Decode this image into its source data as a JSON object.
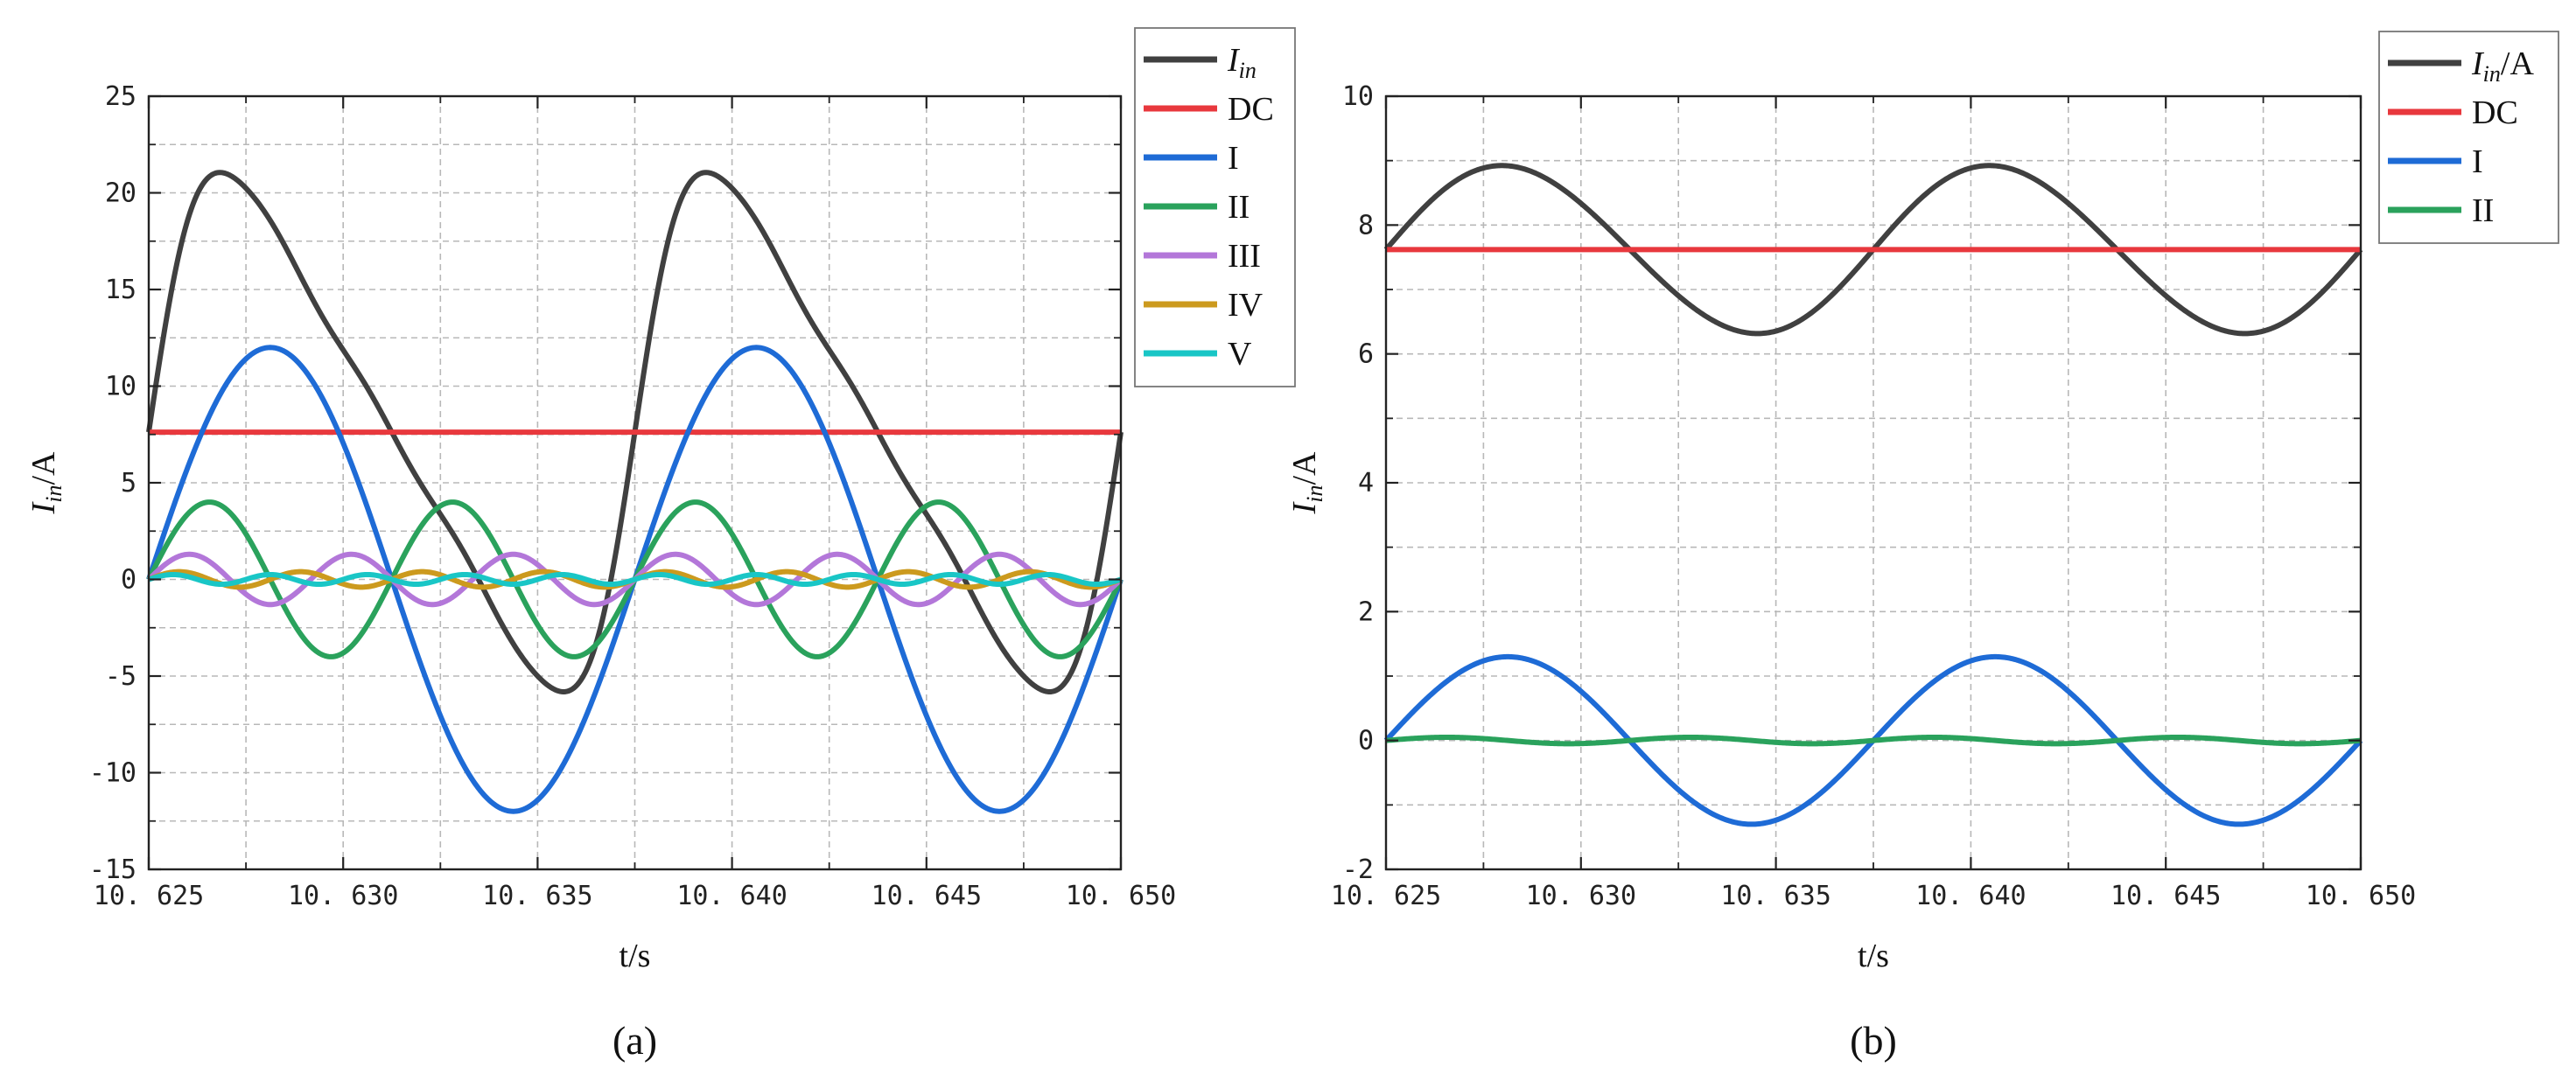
{
  "chart_data": [
    {
      "type": "line",
      "panel_label": "(a)",
      "xlabel": "t/s",
      "ylabel": {
        "base": "I",
        "sub": "in",
        "unit": "/A"
      },
      "xlim": [
        10.625,
        10.65
      ],
      "ylim": [
        -15,
        25
      ],
      "xticks": [
        10.625,
        10.63,
        10.635,
        10.64,
        10.645,
        10.65
      ],
      "xtick_labels": [
        "10. 625",
        "10. 630",
        "10. 635",
        "10. 640",
        "10. 645",
        "10. 650"
      ],
      "yticks": [
        -15,
        -10,
        -5,
        0,
        5,
        10,
        15,
        20,
        25
      ],
      "ytick_labels": [
        "-15",
        "-10",
        "-5",
        "0",
        "5",
        "10",
        "15",
        "20",
        "25"
      ],
      "series": [
        {
          "name": "I_in",
          "label_base": "I",
          "label_sub": "in",
          "label_suffix": "",
          "color": "#404040",
          "kind": "sum",
          "components": [
            {
              "amp": 7.62,
              "h": 0,
              "phase": 0
            },
            {
              "amp": 12.0,
              "h": 1,
              "phase": 0
            },
            {
              "amp": 4.0,
              "h": 2,
              "phase": 0
            },
            {
              "amp": 1.3,
              "h": 3,
              "phase": 0
            },
            {
              "amp": 0.4,
              "h": 4,
              "phase": 0
            },
            {
              "amp": 0.25,
              "h": 5,
              "phase": 0
            }
          ]
        },
        {
          "name": "DC",
          "label_base": "DC",
          "color": "#e8383d",
          "kind": "sum",
          "components": [
            {
              "amp": 7.62,
              "h": 0,
              "phase": 0
            }
          ]
        },
        {
          "name": "I",
          "label_base": "I",
          "color": "#1e6bd6",
          "kind": "sum",
          "components": [
            {
              "amp": 12.0,
              "h": 1,
              "phase": 0
            }
          ]
        },
        {
          "name": "II",
          "label_base": "II",
          "color": "#2aa25c",
          "kind": "sum",
          "components": [
            {
              "amp": 4.0,
              "h": 2,
              "phase": 0
            }
          ]
        },
        {
          "name": "III",
          "label_base": "III",
          "color": "#b377d9",
          "kind": "sum",
          "components": [
            {
              "amp": 1.3,
              "h": 3,
              "phase": 0
            }
          ]
        },
        {
          "name": "IV",
          "label_base": "IV",
          "color": "#cc9a1e",
          "kind": "sum",
          "components": [
            {
              "amp": 0.4,
              "h": 4,
              "phase": 0
            }
          ]
        },
        {
          "name": "V",
          "label_base": "V",
          "color": "#19c6c6",
          "kind": "sum",
          "components": [
            {
              "amp": 0.25,
              "h": 5,
              "phase": 0
            }
          ]
        }
      ],
      "period_s": 0.0125,
      "legend": "outside-top-right"
    },
    {
      "type": "line",
      "panel_label": "(b)",
      "xlabel": "t/s",
      "ylabel": {
        "base": "I",
        "sub": "in",
        "unit": "/A"
      },
      "xlim": [
        10.625,
        10.65
      ],
      "ylim": [
        -2,
        10
      ],
      "xticks": [
        10.625,
        10.63,
        10.635,
        10.64,
        10.645,
        10.65
      ],
      "xtick_labels": [
        "10. 625",
        "10. 630",
        "10. 635",
        "10. 640",
        "10. 645",
        "10. 650"
      ],
      "yticks": [
        -2,
        0,
        2,
        4,
        6,
        8,
        10
      ],
      "ytick_labels": [
        "-2",
        "0",
        "2",
        "4",
        "6",
        "8",
        "10"
      ],
      "series": [
        {
          "name": "I_in/A",
          "label_base": "I",
          "label_sub": "in",
          "label_suffix": "/A",
          "color": "#404040",
          "kind": "sum",
          "components": [
            {
              "amp": 7.62,
              "h": 0,
              "phase": 0
            },
            {
              "amp": 1.3,
              "h": 1,
              "phase": 0
            },
            {
              "amp": 0.05,
              "h": 2,
              "phase": 0
            }
          ]
        },
        {
          "name": "DC",
          "label_base": "DC",
          "color": "#e8383d",
          "kind": "sum",
          "components": [
            {
              "amp": 7.62,
              "h": 0,
              "phase": 0
            }
          ]
        },
        {
          "name": "I",
          "label_base": "I",
          "color": "#1e6bd6",
          "kind": "sum",
          "components": [
            {
              "amp": 1.3,
              "h": 1,
              "phase": 0
            }
          ]
        },
        {
          "name": "II",
          "label_base": "II",
          "color": "#2aa25c",
          "kind": "sum",
          "components": [
            {
              "amp": 0.05,
              "h": 2,
              "phase": 0
            }
          ]
        }
      ],
      "period_s": 0.0125,
      "legend": "outside-top-right"
    }
  ]
}
